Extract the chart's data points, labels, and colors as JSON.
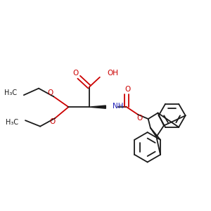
{
  "bg_color": "#ffffff",
  "bond_color": "#1a1a1a",
  "red": "#cc0000",
  "blue": "#2222bb",
  "lw": 1.3,
  "figsize": [
    3.0,
    3.0
  ],
  "dpi": 100,
  "xlim": [
    10,
    290
  ],
  "ylim": [
    50,
    270
  ]
}
